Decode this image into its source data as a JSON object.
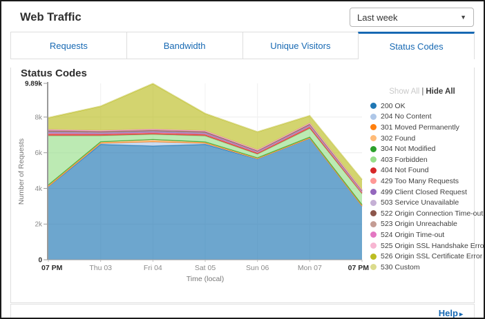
{
  "header": {
    "title": "Web Traffic",
    "range_select": {
      "value": "Last week",
      "caret_icon": "chevron-down"
    }
  },
  "tabs": [
    {
      "label": "Requests",
      "active": false
    },
    {
      "label": "Bandwidth",
      "active": false
    },
    {
      "label": "Unique Visitors",
      "active": false
    },
    {
      "label": "Status Codes",
      "active": true
    }
  ],
  "panel": {
    "heading": "Status Codes"
  },
  "legend": {
    "show_all": "Show All",
    "separator": "|",
    "hide_all": "Hide All",
    "position": "right"
  },
  "footer": {
    "help_label": "Help",
    "help_arrow": "▸"
  },
  "colors": {
    "accent_blue": "#1769b3",
    "axis_dark": "#2b2b2b",
    "axis_gray": "#8a8a8a",
    "grid": "#ececec"
  },
  "chart_data": {
    "type": "area",
    "stacked": true,
    "title": "Status Codes",
    "xlabel": "Time (local)",
    "ylabel": "Number of Requests",
    "grid": true,
    "legend_position": "right",
    "categories": [
      "07 PM",
      "Thu 03",
      "Fri 04",
      "Sat 05",
      "Sun 06",
      "Mon 07",
      "07 PM"
    ],
    "bold_category_indices": [
      0,
      6
    ],
    "ylim": [
      0,
      9890
    ],
    "yticks": [
      {
        "value": 0,
        "label": "0",
        "bold": true,
        "grid": false
      },
      {
        "value": 2000,
        "label": "2k",
        "bold": false,
        "grid": true
      },
      {
        "value": 4000,
        "label": "4k",
        "bold": false,
        "grid": true
      },
      {
        "value": 6000,
        "label": "6k",
        "bold": false,
        "grid": true
      },
      {
        "value": 8000,
        "label": "8k",
        "bold": false,
        "grid": true
      },
      {
        "value": 9890,
        "label": "9.89k",
        "bold": true,
        "grid": false
      }
    ],
    "series": [
      {
        "name": "200 OK",
        "color": "#1f77b4",
        "values": [
          4100,
          6470,
          6380,
          6470,
          5650,
          6800,
          3000
        ]
      },
      {
        "name": "204 No Content",
        "color": "#aec7e8",
        "values": [
          10,
          60,
          230,
          60,
          10,
          10,
          10
        ]
      },
      {
        "name": "301 Moved Permanently",
        "color": "#ff7f0e",
        "values": [
          15,
          15,
          15,
          15,
          15,
          15,
          15
        ]
      },
      {
        "name": "302 Found",
        "color": "#ffbb78",
        "values": [
          60,
          60,
          100,
          50,
          30,
          40,
          50
        ]
      },
      {
        "name": "304 Not Modified",
        "color": "#2ca02c",
        "values": [
          15,
          15,
          20,
          15,
          15,
          15,
          15
        ]
      },
      {
        "name": "403 Forbidden",
        "color": "#98df8a",
        "values": [
          2750,
          330,
          280,
          330,
          200,
          480,
          600
        ]
      },
      {
        "name": "404 Not Found",
        "color": "#d62728",
        "values": [
          80,
          70,
          70,
          70,
          60,
          80,
          60
        ]
      },
      {
        "name": "429 Too Many Requests",
        "color": "#ff9896",
        "values": [
          40,
          30,
          30,
          30,
          25,
          30,
          25
        ]
      },
      {
        "name": "499 Client Closed Request",
        "color": "#9467bd",
        "values": [
          60,
          50,
          50,
          50,
          40,
          50,
          40
        ]
      },
      {
        "name": "503 Service Unavailable",
        "color": "#c5b0d5",
        "values": [
          40,
          30,
          30,
          30,
          25,
          30,
          25
        ]
      },
      {
        "name": "522 Origin Connection Time-out",
        "color": "#8c564b",
        "values": [
          50,
          45,
          45,
          45,
          35,
          45,
          35
        ]
      },
      {
        "name": "523 Origin Unreachable",
        "color": "#c49c94",
        "values": [
          35,
          30,
          30,
          30,
          25,
          30,
          25
        ]
      },
      {
        "name": "524 Origin Time-out",
        "color": "#e377c2",
        "values": [
          30,
          25,
          25,
          25,
          20,
          25,
          20
        ]
      },
      {
        "name": "525 Origin SSL Handshake Error",
        "color": "#f7b6d2",
        "values": [
          20,
          20,
          20,
          20,
          15,
          20,
          15
        ]
      },
      {
        "name": "526 Origin SSL Certificate Error",
        "color": "#bcbd22",
        "values": [
          650,
          1350,
          2540,
          950,
          1000,
          400,
          560
        ]
      },
      {
        "name": "530 Custom",
        "color": "#dbdb8d",
        "values": [
          20,
          20,
          25,
          20,
          15,
          20,
          15
        ]
      }
    ]
  }
}
